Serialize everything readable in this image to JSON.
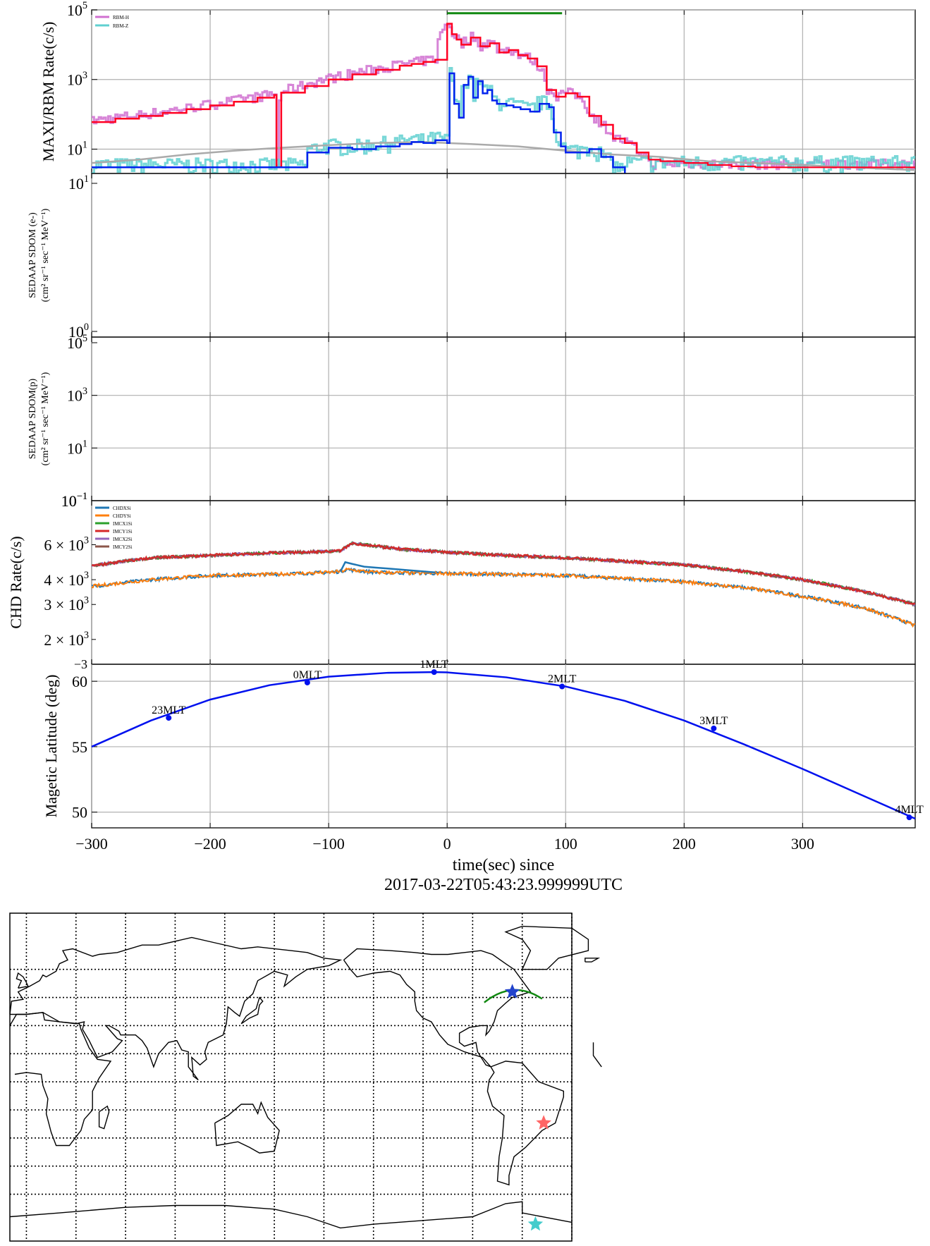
{
  "chart_data": [
    {
      "type": "line",
      "name": "rbm-panel",
      "ylabel": "MAXI/RBM Rate(c/s)",
      "yscale": "log",
      "ylim": [
        2,
        100000
      ],
      "xlim": [
        -300,
        395
      ],
      "yticks": [
        {
          "v": 10,
          "label": "10",
          "exp": "1"
        },
        {
          "v": 1000,
          "label": "10",
          "exp": "3"
        },
        {
          "v": 100000,
          "label": "10",
          "exp": "5"
        }
      ],
      "legend": {
        "position": "top-left",
        "entries": [
          {
            "name": "RBM-H",
            "color": "#d070d0"
          },
          {
            "name": "RBM-Z",
            "color": "#60d0d0"
          }
        ]
      },
      "trigger_bar": {
        "x": [
          0,
          97
        ],
        "y": 80000,
        "color": "#118811"
      },
      "series": [
        {
          "name": "RBM-H-binned",
          "color": "#ff0022",
          "x": [
            -300,
            -280,
            -260,
            -240,
            -220,
            -200,
            -180,
            -160,
            -146,
            -144,
            -140,
            -120,
            -100,
            -80,
            -60,
            -40,
            -30,
            -20,
            -10,
            0,
            4,
            8,
            12,
            20,
            28,
            36,
            44,
            52,
            60,
            68,
            76,
            84,
            92,
            100,
            110,
            120,
            130,
            140,
            150,
            160,
            170,
            180,
            200,
            220,
            240,
            260,
            280,
            300,
            320,
            340,
            360,
            380,
            395
          ],
          "y": [
            60,
            75,
            90,
            110,
            140,
            180,
            230,
            300,
            360,
            3,
            420,
            650,
            1000,
            1400,
            1900,
            2500,
            2800,
            3200,
            3700,
            40000,
            20000,
            14000,
            10000,
            16000,
            9000,
            11000,
            6000,
            7000,
            5000,
            4000,
            2400,
            500,
            320,
            400,
            320,
            90,
            50,
            20,
            15,
            8,
            5,
            4.5,
            4,
            3.5,
            3.2,
            3,
            3,
            3,
            3,
            3,
            3,
            3,
            3
          ],
          "line_only_until": 170
        },
        {
          "name": "RBM-Z-binned",
          "color": "#0022ee",
          "x": [
            -300,
            -280,
            -260,
            -240,
            -220,
            -200,
            -180,
            -160,
            -140,
            -120,
            -118,
            -100,
            -80,
            -60,
            -40,
            -30,
            -20,
            -10,
            0,
            2,
            6,
            10,
            14,
            18,
            22,
            26,
            30,
            34,
            38,
            42,
            46,
            50,
            56,
            62,
            70,
            78,
            86,
            90,
            96,
            100,
            110,
            120,
            130,
            140,
            150
          ],
          "y": [
            3,
            3,
            3,
            3,
            3,
            3,
            3,
            3,
            3,
            3,
            8,
            11,
            10,
            12,
            14,
            16,
            15,
            18,
            15,
            1500,
            200,
            80,
            700,
            1200,
            300,
            900,
            400,
            500,
            250,
            200,
            200,
            180,
            160,
            140,
            120,
            200,
            160,
            30,
            12,
            8,
            8,
            10,
            6,
            3,
            2
          ]
        },
        {
          "name": "background-model",
          "color": "#aaaaaa",
          "x": [
            -300,
            -260,
            -220,
            -180,
            -140,
            -100,
            -60,
            -20,
            20,
            60,
            100,
            140,
            180,
            220,
            260,
            300,
            340,
            395
          ],
          "y": [
            4,
            5,
            7,
            9,
            11,
            13,
            15,
            16,
            14,
            12,
            9,
            7,
            6,
            4.5,
            4,
            3.5,
            3,
            2.5
          ]
        }
      ]
    },
    {
      "type": "line",
      "name": "sedaap-electron-panel",
      "ylabel": "SEDAAP SDOM (e-)",
      "ylabel_units": "(cm² sr⁻¹ sec⁻¹ MeV⁻¹)",
      "yscale": "log",
      "yticks": [
        {
          "v": 10,
          "label": "10",
          "exp": "1"
        },
        {
          "v": 1,
          "label": "10",
          "exp": "0"
        }
      ],
      "series": []
    },
    {
      "type": "line",
      "name": "sedaap-proton-panel",
      "ylabel": "SEDAAP SDOM(p)",
      "ylabel_units": "(cm² sr⁻¹ sec⁻¹ MeV⁻¹)",
      "yscale": "log",
      "yticks": [
        {
          "v": 100000,
          "label": "10",
          "exp": "5"
        },
        {
          "v": 1000,
          "label": "10",
          "exp": "3"
        },
        {
          "v": 10,
          "label": "10",
          "exp": "1"
        },
        {
          "v": 0.1,
          "label": "10",
          "exp": "−1"
        }
      ],
      "series": []
    },
    {
      "type": "line",
      "name": "chd-panel",
      "ylabel": "CHD Rate(c/s)",
      "yscale": "log",
      "ylim": [
        1500,
        10000
      ],
      "yticks": [
        {
          "v": 6000,
          "label": "6 × 10",
          "exp": "3"
        },
        {
          "v": 4000,
          "label": "4 × 10",
          "exp": "3"
        },
        {
          "v": 3000,
          "label": "3 × 10",
          "exp": "3"
        },
        {
          "v": 2000,
          "label": "2 × 10",
          "exp": "3"
        }
      ],
      "legend": {
        "position": "top-left",
        "entries": [
          {
            "name": "CHDXSi",
            "color": "#1f77b4"
          },
          {
            "name": "CHDYSi",
            "color": "#ff7f0e"
          },
          {
            "name": "IMCX1Si",
            "color": "#2ca02c"
          },
          {
            "name": "IMCY1Si",
            "color": "#d62728"
          },
          {
            "name": "IMCX2Si",
            "color": "#9467bd"
          },
          {
            "name": "IMCY2Si",
            "color": "#8c564b"
          }
        ]
      },
      "series": [
        {
          "name": "upper-group",
          "color": "#d62728",
          "x": [
            -300,
            -250,
            -200,
            -150,
            -100,
            -90,
            -80,
            -60,
            -40,
            0,
            50,
            100,
            150,
            200,
            250,
            300,
            350,
            395
          ],
          "y": [
            4700,
            5150,
            5300,
            5450,
            5550,
            5600,
            6100,
            5900,
            5700,
            5500,
            5300,
            5150,
            4950,
            4750,
            4400,
            4000,
            3500,
            3000
          ]
        },
        {
          "name": "lower-group",
          "color": "#ff7f0e",
          "x": [
            -300,
            -250,
            -200,
            -150,
            -100,
            -90,
            -85,
            -60,
            0,
            50,
            100,
            150,
            200,
            250,
            300,
            350,
            395
          ],
          "y": [
            3700,
            4000,
            4200,
            4250,
            4350,
            4400,
            4500,
            4350,
            4300,
            4250,
            4200,
            4050,
            3900,
            3650,
            3300,
            2900,
            2350
          ]
        },
        {
          "name": "chdxsi-bump",
          "color": "#1f77b4",
          "x": [
            -90,
            -86,
            -80,
            -70,
            -60,
            -50,
            -40,
            -30,
            -20,
            -10
          ],
          "y": [
            4400,
            4900,
            4800,
            4650,
            4600,
            4550,
            4500,
            4450,
            4400,
            4350
          ]
        }
      ]
    },
    {
      "type": "line",
      "name": "magnetic-latitude-panel",
      "ylabel": "Magetic Latitude  (deg)",
      "xlabel": "time(sec) since",
      "xlabel2": "2017-03-22T05:43:23.999999UTC",
      "xlim": [
        -300,
        395
      ],
      "ylim": [
        48.8,
        61.3
      ],
      "xticks": [
        -300,
        -200,
        -100,
        0,
        100,
        200,
        300
      ],
      "xtick_labels": [
        "−300",
        "−200",
        "−100",
        "0",
        "100",
        "200",
        "300"
      ],
      "yticks": [
        50,
        55,
        60
      ],
      "ytick_labels": [
        "50",
        "55",
        "60"
      ],
      "top_clipped_tick_label": "−3",
      "color": "#0011ee",
      "series": [
        {
          "name": "maglat",
          "x": [
            -300,
            -250,
            -200,
            -150,
            -100,
            -50,
            -11,
            0,
            50,
            100,
            150,
            200,
            250,
            300,
            350,
            395
          ],
          "y": [
            55.0,
            57.0,
            58.6,
            59.7,
            60.35,
            60.65,
            60.7,
            60.68,
            60.3,
            59.6,
            58.5,
            57.0,
            55.2,
            53.3,
            51.3,
            49.5
          ]
        }
      ],
      "mlt_markers": [
        {
          "x": -235,
          "y": 57.2,
          "label": "23MLT"
        },
        {
          "x": -118,
          "y": 59.9,
          "label": "0MLT"
        },
        {
          "x": -11,
          "y": 60.7,
          "label": "1MLT"
        },
        {
          "x": 97,
          "y": 59.6,
          "label": "2MLT"
        },
        {
          "x": 225,
          "y": 56.4,
          "label": "3MLT"
        },
        {
          "x": 390,
          "y": 49.6,
          "label": "4MLT"
        }
      ]
    },
    {
      "type": "map",
      "name": "world-map",
      "markers": [
        {
          "name": "blue-star",
          "color": "#2244cc",
          "lon": -66,
          "lat": 48
        },
        {
          "name": "red-star",
          "color": "#ff6666",
          "lon": -47,
          "lat": -22
        },
        {
          "name": "cyan-star",
          "color": "#44cccc",
          "lon": -52,
          "lat": -76
        }
      ],
      "track": {
        "color": "#118811"
      }
    }
  ]
}
